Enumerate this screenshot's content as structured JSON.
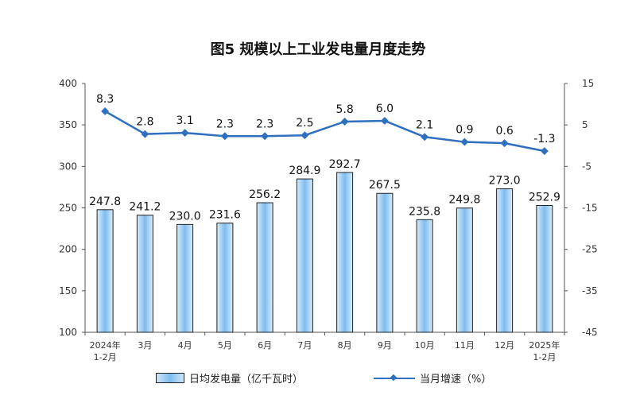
{
  "chart_data": {
    "type": "bar",
    "title": "图5  规模以上工业发电量月度走势",
    "categories": [
      [
        "2024年",
        "1-2月"
      ],
      [
        "3月"
      ],
      [
        "4月"
      ],
      [
        "5月"
      ],
      [
        "6月"
      ],
      [
        "7月"
      ],
      [
        "8月"
      ],
      [
        "9月"
      ],
      [
        "10月"
      ],
      [
        "11月"
      ],
      [
        "12月"
      ],
      [
        "2025年",
        "1-2月"
      ]
    ],
    "series": [
      {
        "name": "日均发电量（亿千瓦时）",
        "type": "bar",
        "axis": "left",
        "values": [
          247.8,
          241.2,
          230.0,
          231.6,
          256.2,
          284.9,
          292.7,
          267.5,
          235.8,
          249.8,
          273.0,
          252.9
        ],
        "labels": [
          "247.8",
          "241.2",
          "230.0",
          "231.6",
          "256.2",
          "284.9",
          "292.7",
          "267.5",
          "235.8",
          "249.8",
          "273.0",
          "252.9"
        ]
      },
      {
        "name": "当月增速（%）",
        "type": "line",
        "axis": "right",
        "values": [
          8.3,
          2.8,
          3.1,
          2.3,
          2.3,
          2.5,
          5.8,
          6.0,
          2.1,
          0.9,
          0.6,
          -1.3
        ],
        "labels": [
          "8.3",
          "2.8",
          "3.1",
          "2.3",
          "2.3",
          "2.5",
          "5.8",
          "6.0",
          "2.1",
          "0.9",
          "0.6",
          "-1.3"
        ]
      }
    ],
    "y_left": {
      "min": 100,
      "max": 400,
      "ticks": [
        "100",
        "150",
        "200",
        "250",
        "300",
        "350",
        "400"
      ]
    },
    "y_right": {
      "min": -45,
      "max": 15,
      "ticks": [
        "-45",
        "-35",
        "-25",
        "-15",
        "-5",
        "5",
        "15"
      ]
    },
    "grid": false,
    "legend_position": "bottom",
    "colors": {
      "bar_fill": "#8cc5f2",
      "bar_edge": "#1f1f1f",
      "line": "#2f6fbf",
      "axis": "#555555"
    }
  }
}
